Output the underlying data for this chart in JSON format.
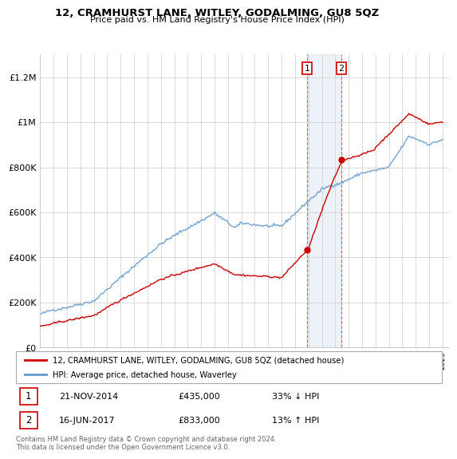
{
  "title": "12, CRAMHURST LANE, WITLEY, GODALMING, GU8 5QZ",
  "subtitle": "Price paid vs. HM Land Registry's House Price Index (HPI)",
  "ylabel_ticks": [
    "£0",
    "£200K",
    "£400K",
    "£600K",
    "£800K",
    "£1M",
    "£1.2M"
  ],
  "ytick_values": [
    0,
    200000,
    400000,
    600000,
    800000,
    1000000,
    1200000
  ],
  "ylim": [
    0,
    1300000
  ],
  "sale1_date": "21-NOV-2014",
  "sale1_price": 435000,
  "sale1_hpi_diff": "33% ↓ HPI",
  "sale1_label": "1",
  "sale2_date": "16-JUN-2017",
  "sale2_price": 833000,
  "sale2_hpi_diff": "13% ↑ HPI",
  "sale2_label": "2",
  "legend_line1": "12, CRAMHURST LANE, WITLEY, GODALMING, GU8 5QZ (detached house)",
  "legend_line2": "HPI: Average price, detached house, Waverley",
  "footer": "Contains HM Land Registry data © Crown copyright and database right 2024.\nThis data is licensed under the Open Government Licence v3.0.",
  "sale_color": "#cc0000",
  "hpi_color": "#6699cc",
  "background_color": "#ffffff",
  "sale1_x": 2014.9,
  "sale2_x": 2017.46,
  "xmin": 1995,
  "xmax": 2025.5
}
